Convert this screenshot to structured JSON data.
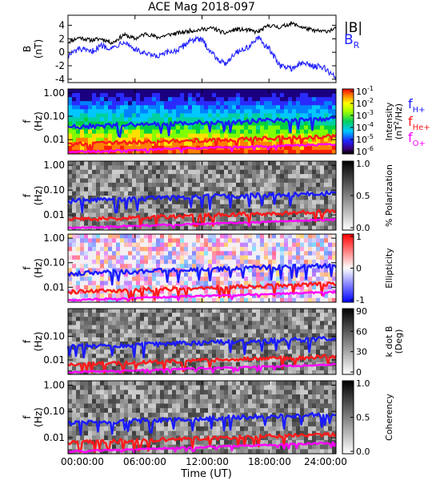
{
  "figure": {
    "title": "ACE Mag 2018-097",
    "time_axis_label": "Time (UT)",
    "time_ticks": [
      "00:00:00",
      "06:00:00",
      "12:00:00",
      "18:00:00",
      "24:00:00"
    ]
  },
  "legend": {
    "top_panel": [
      {
        "label": "|B|",
        "color": "#000000"
      },
      {
        "label_main": "B",
        "label_sub": "R",
        "color": "#2020ff"
      }
    ],
    "frequency_lines": [
      {
        "label_main": "f",
        "label_sub": "H+",
        "color": "#1a1aff"
      },
      {
        "label_main": "f",
        "label_sub": "He+",
        "color": "#ff1a1a"
      },
      {
        "label_main": "f",
        "label_sub": "O+",
        "color": "#ff00ff"
      }
    ]
  },
  "colors": {
    "B_magnitude": "#000000",
    "B_R": "#2020ff",
    "f_H": "#1a1aff",
    "f_He": "#ff1a1a",
    "f_O": "#ff00ff"
  },
  "chart_data": [
    {
      "type": "line",
      "ylabel_main": "B",
      "ylabel_sub": "(nT)",
      "x_range_hours": [
        0,
        24
      ],
      "ylim": [
        -4.5,
        5.5
      ],
      "y_ticks": [
        -4,
        -2,
        0,
        2,
        4
      ],
      "series": [
        {
          "name": "|B|",
          "color": "#000000",
          "x": [
            0,
            1,
            2,
            3,
            4,
            5,
            6,
            7,
            8,
            9,
            10,
            11,
            12,
            13,
            14,
            15,
            16,
            17,
            18,
            19,
            20,
            21,
            22,
            23,
            24
          ],
          "y": [
            1.5,
            2.2,
            1.8,
            2.0,
            1.4,
            2.6,
            2.0,
            2.8,
            2.2,
            2.6,
            2.9,
            3.2,
            3.4,
            3.6,
            2.8,
            3.4,
            3.3,
            3.0,
            4.0,
            3.7,
            4.3,
            3.7,
            3.2,
            3.1,
            3.5
          ]
        },
        {
          "name": "B_R",
          "color": "#2020ff",
          "x": [
            0,
            1,
            2,
            3,
            4,
            5,
            6,
            7,
            8,
            9,
            10,
            11,
            12,
            13,
            14,
            15,
            16,
            17,
            18,
            19,
            20,
            21,
            22,
            23,
            24
          ],
          "y": [
            -0.5,
            0.5,
            0.0,
            1.0,
            0.6,
            1.7,
            0.4,
            -0.3,
            -0.7,
            0.0,
            0.4,
            1.9,
            1.8,
            -0.3,
            -1.8,
            0.0,
            0.6,
            2.1,
            0.5,
            -2.0,
            -2.4,
            -1.6,
            -2.0,
            -2.4,
            -3.8
          ]
        }
      ]
    },
    {
      "type": "heatmap",
      "quantity": "Intensity",
      "ylabel_main": "f",
      "ylabel_sub": "(Hz)",
      "y_ticks": [
        "1.00",
        "0.10",
        "0.01"
      ],
      "cbar_label": "Intensity (nT²/Hz)",
      "cbar_label_main": "Intensity",
      "cbar_label_unit": "(nT",
      "cbar_label_sup": "2",
      "cbar_label_tail": "/Hz)",
      "cbar_ticks": [
        {
          "base": "10",
          "exp": "-1"
        },
        {
          "base": "10",
          "exp": "-2"
        },
        {
          "base": "10",
          "exp": "-3"
        },
        {
          "base": "10",
          "exp": "-4"
        },
        {
          "base": "10",
          "exp": "-5"
        },
        {
          "base": "10",
          "exp": "-6"
        }
      ],
      "cbar_colormap": "rainbow"
    },
    {
      "type": "heatmap",
      "quantity": "% Polarization",
      "ylabel_main": "f",
      "ylabel_sub": "(Hz)",
      "y_ticks": [
        "1.00",
        "0.10",
        "0.01"
      ],
      "cbar_label": "% Polarization",
      "cbar_ticks": [
        "1.0",
        "0.5",
        "0.0"
      ],
      "cbar_colormap": "gray"
    },
    {
      "type": "heatmap",
      "quantity": "Ellipticity",
      "ylabel_main": "f",
      "ylabel_sub": "(Hz)",
      "y_ticks": [
        "1.00",
        "0.10",
        "0.01"
      ],
      "cbar_label": "Ellipticity",
      "cbar_ticks": [
        "1",
        "0",
        "-1"
      ],
      "cbar_colormap": "blue-white-red"
    },
    {
      "type": "heatmap",
      "quantity": "k dot B (Deg)",
      "ylabel_main": "f",
      "ylabel_sub": "(Hz)",
      "y_ticks": [
        "0.10",
        "0.01"
      ],
      "cbar_label": "k dot B (Deg)",
      "cbar_label_main": "k dot B",
      "cbar_label_unit": "(Deg)",
      "cbar_ticks": [
        "90",
        "60",
        "30",
        "0"
      ],
      "cbar_colormap": "gray"
    },
    {
      "type": "heatmap",
      "quantity": "Coherency",
      "ylabel_main": "f",
      "ylabel_sub": "(Hz)",
      "y_ticks": [
        "1.00",
        "0.10",
        "0.01"
      ],
      "cbar_label": "Coherency",
      "cbar_ticks": [
        "1.0",
        "0.5",
        "0.0"
      ],
      "cbar_colormap": "gray"
    }
  ]
}
